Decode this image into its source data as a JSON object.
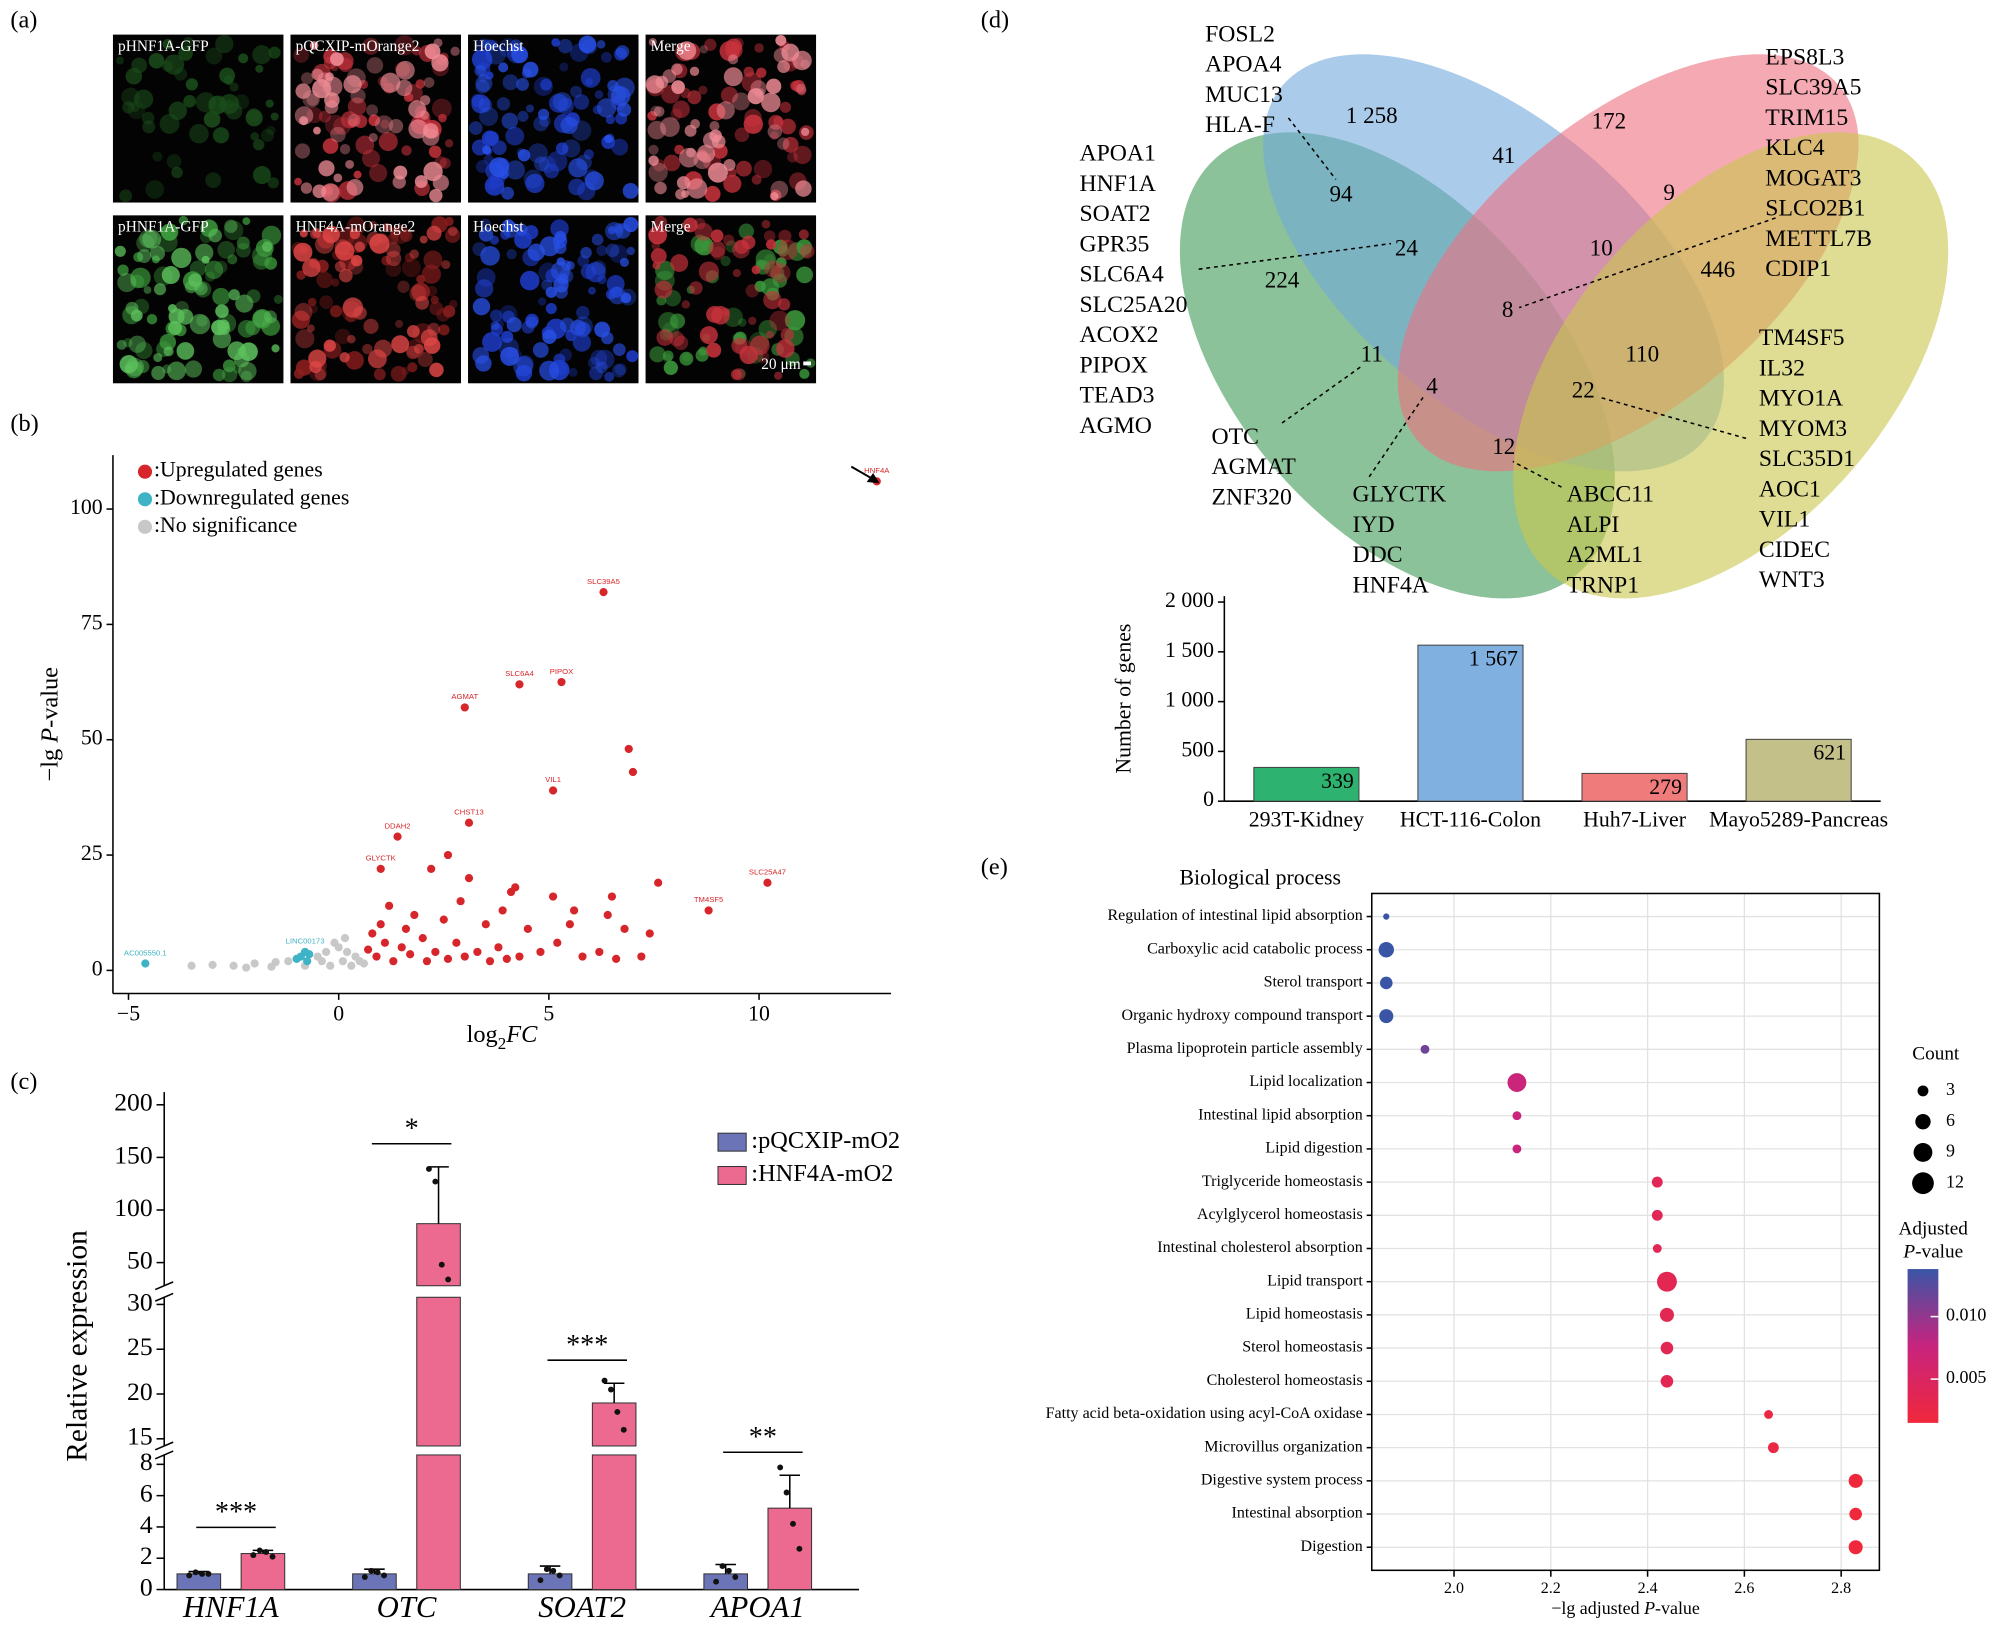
{
  "chart_data": [
    {
      "type": "image_grid",
      "panel": "(a)",
      "rows": [
        {
          "tiles": [
            {
              "label": "pHNF1A-GFP",
              "colors": [
                "#1b4d1b"
              ]
            },
            {
              "label": "pQCXIP-mOrange2",
              "colors": [
                "#c8323c",
                "#f08c96"
              ]
            },
            {
              "label": "Hoechst",
              "colors": [
                "#1e3cc8",
                "#2850e6"
              ]
            },
            {
              "label": "Merge",
              "colors": [
                "#c8323c",
                "#f08c96"
              ]
            }
          ]
        },
        {
          "tiles": [
            {
              "label": "pHNF1A-GFP",
              "colors": [
                "#3c9a3c",
                "#5cc05c"
              ]
            },
            {
              "label": "HNF4A-mOrange2",
              "colors": [
                "#8c1e1e",
                "#e04646"
              ]
            },
            {
              "label": "Hoechst",
              "colors": [
                "#1e3cc8",
                "#2850e6"
              ]
            },
            {
              "label": "Merge",
              "colors": [
                "#3c9a3c",
                "#c8323c"
              ]
            }
          ]
        }
      ],
      "scale_bar": "20 μm"
    },
    {
      "type": "scatter",
      "panel": "(b)",
      "x_label": [
        "log",
        "2",
        "FC"
      ],
      "y_label": [
        "−lg ",
        "P",
        "-value"
      ],
      "xlim": [
        -5.37,
        13.14
      ],
      "ylim": [
        -5,
        111.7
      ],
      "xticks": [
        {
          "value": -5,
          "label": "−5"
        },
        0,
        5,
        10
      ],
      "yticks": [
        0,
        25,
        50,
        75,
        100
      ],
      "series": [
        {
          "name": ":Upregulated genes",
          "color": "#d7262b",
          "x": [
            12.8,
            6.3,
            4.3,
            5.3,
            3.0,
            5.1,
            3.1,
            1.4,
            1.0,
            8.8,
            10.2,
            6.9,
            7.0,
            2.6,
            2.2,
            3.1,
            4.2,
            4.1,
            5.1,
            6.5,
            7.6,
            1.2,
            1.8,
            2.5,
            3.5,
            4.5,
            5.5,
            6.8,
            7.4,
            0.8,
            1.1,
            1.5,
            2.0,
            2.3,
            2.8,
            3.3,
            3.8,
            4.3,
            4.8,
            5.2,
            5.8,
            6.2,
            6.6,
            7.2,
            0.9,
            1.3,
            1.7,
            2.1,
            2.6,
            3.0,
            3.6,
            4.0,
            0.7,
            1.0,
            1.6,
            2.9,
            3.9,
            5.6,
            6.4
          ],
          "values": [
            106,
            82,
            62,
            62.5,
            57,
            39,
            32,
            29,
            22,
            13,
            19,
            48,
            43,
            25,
            22,
            20,
            18,
            17,
            16,
            16,
            19,
            14,
            12,
            11,
            10,
            9,
            10,
            9,
            8,
            8,
            6,
            5,
            7,
            4,
            6,
            4,
            5,
            3,
            4,
            6,
            3,
            4,
            2.5,
            3,
            3,
            2,
            3.5,
            2,
            2.5,
            3,
            2,
            2.5,
            4.5,
            10,
            9,
            15,
            13,
            13,
            12
          ],
          "labels": [
            "HNF4A",
            "SLC39A5",
            "SLC6A4",
            "PIPOX",
            "AGMAT",
            "VIL1",
            "CHST13",
            "DDAH2",
            "GLYCTK",
            "TM4SF5",
            "SLC25A47",
            null,
            null,
            null,
            null,
            null,
            null,
            null,
            null,
            null,
            null,
            null,
            null,
            null,
            null,
            null,
            null,
            null,
            null,
            null,
            null,
            null,
            null,
            null,
            null,
            null,
            null,
            null,
            null,
            null,
            null,
            null,
            null,
            null,
            null,
            null,
            null,
            null,
            null,
            null,
            null,
            null,
            null,
            null,
            null,
            null,
            null,
            null,
            null
          ]
        },
        {
          "name": ":Downregulated genes",
          "color": "#3fb3c6",
          "x": [
            -0.8,
            -0.9,
            -0.7,
            -1.0,
            -0.75,
            -4.6
          ],
          "values": [
            4,
            3,
            3.5,
            2.5,
            2,
            1.5
          ],
          "labels": [
            "LINC00173",
            null,
            null,
            null,
            null,
            "AC005550.1"
          ]
        },
        {
          "name": ":No significance",
          "color": "#c8c8c8",
          "x": [
            -3.5,
            -3,
            -2.5,
            -2,
            -1.5,
            -1.2,
            -0.5,
            -0.3,
            0,
            0.2,
            0.4,
            0.5,
            0.3,
            -0.2,
            -0.8,
            -1.6,
            -2.2,
            0.1,
            -0.4,
            0.6,
            -0.1,
            0.15
          ],
          "values": [
            1,
            1.2,
            1,
            1.5,
            1.8,
            2,
            3,
            4,
            5,
            4,
            3,
            2,
            1,
            1,
            1,
            0.8,
            0.6,
            2,
            2,
            1.5,
            6,
            7
          ]
        }
      ]
    },
    {
      "type": "broken_bar",
      "panel": "(c)",
      "y_label": "Relative expression",
      "categories": [
        "HNF1A",
        "OTC",
        "SOAT2",
        "APOA1"
      ],
      "segments": [
        {
          "ylim": [
            0,
            8.6
          ],
          "yticks": [
            0,
            2,
            4,
            6,
            8
          ]
        },
        {
          "ylim": [
            14.2,
            30.8
          ],
          "yticks": [
            15,
            20,
            25,
            30
          ]
        },
        {
          "ylim": [
            28,
            212
          ],
          "yticks": [
            50,
            100,
            150,
            200
          ]
        }
      ],
      "series": [
        {
          "name": ":pQCXIP-mO2",
          "color": "#6c74b8",
          "values": [
            1,
            1,
            1,
            1
          ],
          "errors": [
            0.15,
            0.3,
            0.5,
            0.6
          ],
          "points": [
            [
              0.9,
              1.1,
              1.0,
              1.0
            ],
            [
              0.8,
              1.2,
              1.1,
              0.9
            ],
            [
              0.6,
              1.3,
              1.2,
              0.9
            ],
            [
              0.5,
              1.5,
              1.2,
              0.8
            ]
          ]
        },
        {
          "name": ":HNF4A-mO2",
          "color": "#ec6990",
          "values": [
            2.3,
            87,
            19,
            5.2
          ],
          "errors": [
            0.2,
            54,
            2.2,
            2.1
          ],
          "points": [
            [
              2.2,
              2.5,
              2.4,
              2.1
            ],
            [
              139,
              127,
              48,
              34
            ],
            [
              21.5,
              20.5,
              18,
              16
            ],
            [
              7.8,
              6.2,
              4.2,
              2.6
            ]
          ]
        }
      ],
      "significance": [
        "***",
        "*",
        "***",
        "**"
      ]
    },
    {
      "type": "venn",
      "panel": "(d)",
      "sets": [
        {
          "color": "#3f9a55"
        },
        {
          "color": "#72a9dc"
        },
        {
          "color": "#ef6f80"
        },
        {
          "color": "#c9c64c"
        }
      ],
      "regions": [
        {
          "value": 1258,
          "label": "1 258"
        },
        172,
        224,
        446,
        94,
        41,
        9,
        24,
        10,
        8,
        110,
        11,
        4,
        22,
        12
      ],
      "callouts": [
        {
          "genes": [
            "FOSL2",
            "APOA4",
            "MUC13",
            "HLA-F"
          ]
        },
        {
          "genes": [
            "APOA1",
            "HNF1A",
            "SOAT2",
            "GPR35",
            "SLC6A4",
            "SLC25A20",
            "ACOX2",
            "PIPOX",
            "TEAD3",
            "AGMO"
          ]
        },
        {
          "genes": [
            "EPS8L3",
            "SLC39A5",
            "TRIM15",
            "KLC4",
            "MOGAT3",
            "SLCO2B1",
            "METTL7B",
            "CDIP1"
          ]
        },
        {
          "genes": [
            "OTC",
            "AGMAT",
            "ZNF320"
          ]
        },
        {
          "genes": [
            "GLYCTK",
            "IYD",
            "DDC",
            "HNF4A"
          ]
        },
        {
          "genes": [
            "ABCC11",
            "ALPI",
            "A2ML1",
            "TRNP1"
          ]
        },
        {
          "genes": [
            "TM4SF5",
            "IL32",
            "MYO1A",
            "MYOM3",
            "SLC35D1",
            "AOC1",
            "VIL1",
            "CIDEC",
            "WNT3"
          ]
        }
      ]
    },
    {
      "type": "bar",
      "y_label": "Number of genes",
      "categories": [
        "293T-Kidney",
        "HCT-116-Colon",
        "Huh7-Liver",
        "Mayo5289-Pancreas"
      ],
      "values": [
        339,
        1567,
        279,
        621
      ],
      "value_labels": [
        "339",
        "1 567",
        "279",
        "621"
      ],
      "colors": [
        "#2db36f",
        "#7fb0e0",
        "#f07b7b",
        "#c4c08a"
      ],
      "ylim": [
        0,
        2060
      ],
      "yticks": [
        0,
        500,
        {
          "value": 1000,
          "label": "1 000"
        },
        {
          "value": 1500,
          "label": "1 500"
        },
        {
          "value": 2000,
          "label": "2 000"
        }
      ]
    },
    {
      "type": "dot",
      "panel": "(e)",
      "title": "Biological process",
      "x_label": [
        "−lg adjusted ",
        "P",
        "-value"
      ],
      "categories": [
        "Regulation of intestinal lipid absorption",
        "Carboxylic acid catabolic process",
        "Sterol transport",
        "Organic hydroxy compound transport",
        "Plasma lipoprotein particle assembly",
        "Lipid localization",
        "Intestinal lipid absorption",
        "Lipid digestion",
        "Triglyceride homeostasis",
        "Acylglycerol homeostasis",
        "Intestinal cholesterol absorption",
        "Lipid transport",
        "Lipid homeostasis",
        "Sterol homeostasis",
        "Cholesterol homeostasis",
        "Fatty acid beta-oxidation using acyl-CoA oxidase",
        "Microvillus organization",
        "Digestive system process",
        "Intestinal absorption",
        "Digestion"
      ],
      "values": [
        1.86,
        1.86,
        1.86,
        1.86,
        1.94,
        2.13,
        2.13,
        2.13,
        2.42,
        2.42,
        2.42,
        2.44,
        2.44,
        2.44,
        2.44,
        2.65,
        2.66,
        2.83,
        2.83,
        2.83
      ],
      "counts": [
        1,
        6,
        4,
        5,
        2,
        9,
        2,
        2,
        3,
        3,
        2,
        10,
        5,
        4,
        4,
        2,
        3,
        5,
        4,
        5
      ],
      "padj": [
        0.0138,
        0.0138,
        0.0138,
        0.0138,
        0.0115,
        0.0074,
        0.0074,
        0.0074,
        0.0038,
        0.0038,
        0.0038,
        0.0036,
        0.0036,
        0.0036,
        0.0036,
        0.0022,
        0.0022,
        0.0015,
        0.0015,
        0.0015
      ],
      "xlim": [
        1.83,
        2.879
      ],
      "xticks": [
        {
          "value": 2.0,
          "label": "2.0"
        },
        2.2,
        2.4,
        2.6,
        2.8
      ],
      "grid": true,
      "size_title": "Count",
      "size_legend": [
        3,
        6,
        9,
        12
      ],
      "color_title": [
        "Adjusted",
        "P",
        "-value"
      ],
      "colormap": [
        "#f0283c",
        "#c8247e",
        "#3a55a6"
      ],
      "clim": [
        0.0015,
        0.0138
      ],
      "cticks": [
        0.005,
        {
          "value": 0.01,
          "label": "0.010"
        }
      ]
    }
  ]
}
